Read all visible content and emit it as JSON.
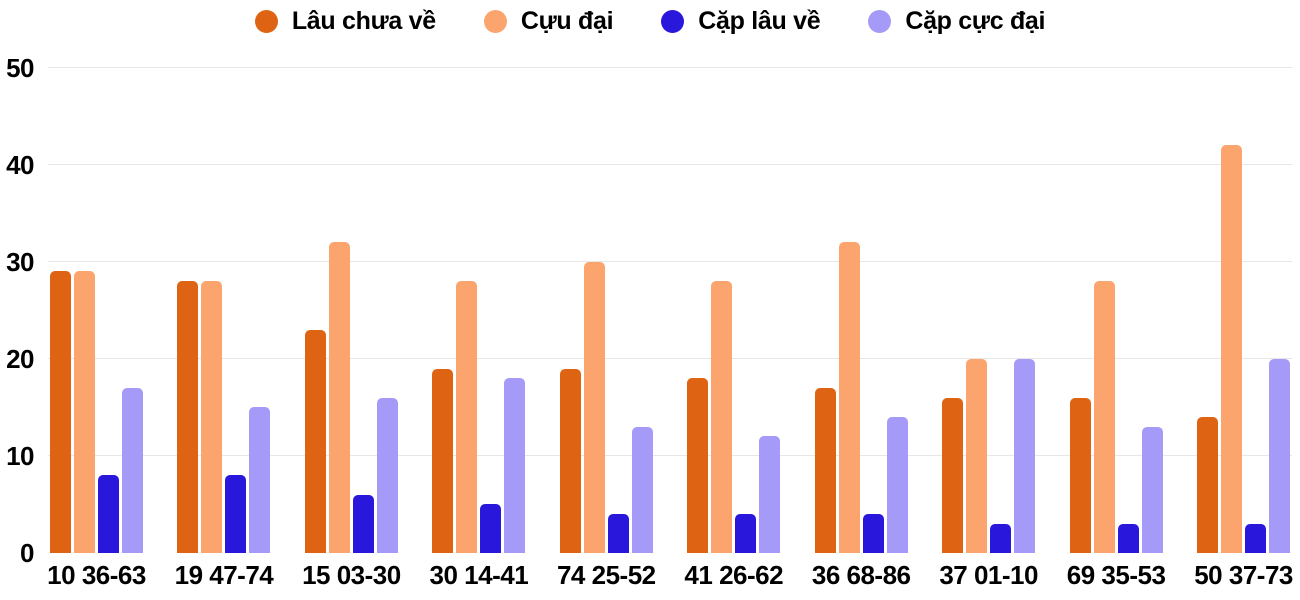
{
  "colors": {
    "background": "#FFFFFF",
    "grid": "#E7E7E7",
    "text": "#000000"
  },
  "y_axis": {
    "ticks": [
      0,
      10,
      20,
      30,
      40,
      50
    ]
  },
  "chart_data": {
    "type": "bar",
    "title": "",
    "xlabel": "",
    "ylabel": "",
    "ylim": [
      0,
      50
    ],
    "grid": true,
    "legend_position": "top",
    "categories": [
      "10 36-63",
      "19 47-74",
      "15 03-30",
      "30 14-41",
      "74 25-52",
      "41 26-62",
      "36 68-86",
      "37 01-10",
      "69 35-53",
      "50 37-73"
    ],
    "series": [
      {
        "name": "Lâu chưa về",
        "color": "#DE6414",
        "values": [
          29,
          28,
          23,
          19,
          19,
          18,
          17,
          16,
          16,
          14
        ]
      },
      {
        "name": "Cựu đại",
        "color": "#FCA46E",
        "values": [
          29,
          28,
          32,
          28,
          30,
          28,
          32,
          20,
          28,
          42
        ]
      },
      {
        "name": "Cặp lâu về",
        "color": "#2917DB",
        "values": [
          8,
          8,
          6,
          5,
          4,
          4,
          4,
          3,
          3,
          3
        ]
      },
      {
        "name": "Cặp cực đại",
        "color": "#A59AF8",
        "values": [
          17,
          15,
          16,
          18,
          13,
          12,
          14,
          20,
          13,
          20
        ]
      }
    ]
  }
}
